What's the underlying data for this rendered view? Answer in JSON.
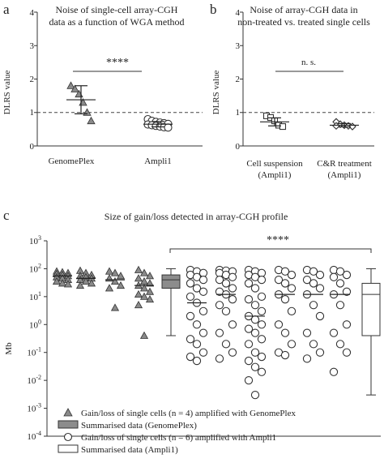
{
  "panels": {
    "a": {
      "label": "a",
      "title_lines": [
        "Noise of single-cell array-CGH",
        "data as a function of WGA method"
      ],
      "ylabel": "DLRS value",
      "yticks": [
        "0",
        "1",
        "2",
        "3",
        "4"
      ],
      "xticks": [
        "GenomePlex",
        "Ampli1"
      ],
      "significance": "****"
    },
    "b": {
      "label": "b",
      "title_lines": [
        "Noise of array-CGH data in",
        "non-treated vs. treated single cells"
      ],
      "ylabel": "DLRS value",
      "yticks": [
        "0",
        "1",
        "2",
        "3",
        "4"
      ],
      "xticks": [
        [
          "Cell suspension",
          "(Ampli1)"
        ],
        [
          "C&R treatment",
          "(Ampli1)"
        ]
      ],
      "significance": "n. s."
    },
    "c": {
      "label": "c",
      "title": "Size of gain/loss detected in array-CGH profile",
      "ylabel": "Mb",
      "ytick_exponents": [
        "3",
        "2",
        "1",
        "0",
        "-1",
        "-2",
        "-3",
        "-4"
      ],
      "significance": "****",
      "legend": [
        {
          "icon": "triangle-icon",
          "text": "Gain/loss of single cells (n = 4) amplified with GenomePlex"
        },
        {
          "icon": "gray-box-icon",
          "text": "Summarised data (GenomePlex)"
        },
        {
          "icon": "circle-icon",
          "text": "Gain/loss of single cells (n = 6) amplified with Ampli1"
        },
        {
          "icon": "white-box-icon",
          "text": "Summarised data (Ampli1)"
        }
      ]
    }
  },
  "chart_data": [
    {
      "type": "scatter",
      "panel": "a",
      "ylim": [
        0,
        4
      ],
      "reference_line": 1,
      "categories": [
        "GenomePlex",
        "Ampli1"
      ],
      "series": [
        {
          "category": "GenomePlex",
          "marker": "triangle",
          "values": [
            1.8,
            1.7,
            1.55,
            1.3,
            1.0,
            0.75
          ],
          "mean": 1.38,
          "sd": 0.42
        },
        {
          "category": "Ampli1",
          "marker": "circle",
          "values": [
            0.8,
            0.75,
            0.72,
            0.7,
            0.68,
            0.66,
            0.64,
            0.62,
            0.6,
            0.58,
            0.56,
            0.55
          ],
          "mean": 0.65,
          "sd": 0.08
        }
      ]
    },
    {
      "type": "scatter",
      "panel": "b",
      "ylim": [
        0,
        4
      ],
      "reference_line": 1,
      "categories": [
        "Cell suspension (Ampli1)",
        "C&R treatment (Ampli1)"
      ],
      "series": [
        {
          "category": "Cell suspension (Ampli1)",
          "marker": "square",
          "values": [
            0.9,
            0.85,
            0.75,
            0.62,
            0.58
          ],
          "mean": 0.72,
          "sd": 0.12
        },
        {
          "category": "C&R treatment (Ampli1)",
          "marker": "diamond",
          "values": [
            0.72,
            0.65,
            0.62,
            0.6,
            0.58,
            0.6
          ],
          "mean": 0.62,
          "sd": 0.05
        }
      ]
    },
    {
      "type": "scatter",
      "panel": "c",
      "yscale": "log10",
      "ylim": [
        0.0001,
        1000
      ],
      "groups": [
        {
          "name": "GenomePlex cell 1",
          "kind": "triangle",
          "median": 55,
          "values": [
            80,
            75,
            70,
            65,
            60,
            55,
            50,
            45,
            40,
            35,
            30,
            28
          ]
        },
        {
          "name": "GenomePlex cell 2",
          "kind": "triangle",
          "median": 45,
          "values": [
            85,
            70,
            60,
            55,
            50,
            45,
            40,
            35,
            30,
            25
          ]
        },
        {
          "name": "GenomePlex cell 3",
          "kind": "triangle",
          "median": 40,
          "values": [
            80,
            70,
            55,
            45,
            35,
            25,
            20,
            4
          ]
        },
        {
          "name": "GenomePlex cell 4",
          "kind": "triangle",
          "median": 25,
          "values": [
            90,
            70,
            55,
            45,
            35,
            30,
            25,
            20,
            15,
            12,
            10,
            8,
            5,
            0.4
          ]
        },
        {
          "name": "GenomePlex summary",
          "kind": "box",
          "whisker_low": 0.4,
          "q1": 20,
          "median": 40,
          "q3": 60,
          "whisker_high": 100
        },
        {
          "name": "Ampli1 cell 1",
          "kind": "circle",
          "median": 6,
          "values": [
            90,
            80,
            70,
            60,
            50,
            40,
            30,
            20,
            15,
            10,
            6,
            3,
            2,
            1,
            0.5,
            0.3,
            0.2,
            0.1,
            0.07,
            0.05
          ]
        },
        {
          "name": "Ampli1 cell 2",
          "kind": "circle",
          "median": 12,
          "values": [
            90,
            85,
            80,
            70,
            60,
            50,
            40,
            30,
            20,
            15,
            12,
            8,
            5,
            3,
            1,
            0.5,
            0.2,
            0.1,
            0.06
          ]
        },
        {
          "name": "Ampli1 cell 3",
          "kind": "circle",
          "median": 2,
          "values": [
            90,
            80,
            70,
            60,
            50,
            40,
            30,
            20,
            10,
            8,
            5,
            3,
            2,
            1.5,
            1,
            0.7,
            0.5,
            0.3,
            0.2,
            0.1,
            0.07,
            0.05,
            0.03,
            0.02,
            0.01,
            0.003
          ]
        },
        {
          "name": "Ampli1 cell 4",
          "kind": "circle",
          "median": 12,
          "values": [
            90,
            80,
            60,
            40,
            30,
            20,
            12,
            8,
            3,
            1,
            0.5,
            0.2,
            0.1,
            0.08
          ]
        },
        {
          "name": "Ampli1 cell 5",
          "kind": "circle",
          "median": 12,
          "values": [
            90,
            80,
            60,
            40,
            30,
            20,
            12,
            5,
            2,
            0.5,
            0.2,
            0.1,
            0.06
          ]
        },
        {
          "name": "Ampli1 cell 6",
          "kind": "circle",
          "median": 12,
          "values": [
            90,
            80,
            60,
            50,
            30,
            15,
            12,
            5,
            1,
            0.5,
            0.2,
            0.1,
            0.02
          ]
        },
        {
          "name": "Ampli1 summary",
          "kind": "box",
          "whisker_low": 0.003,
          "q1": 0.4,
          "median": 12,
          "q3": 30,
          "whisker_high": 100
        }
      ]
    }
  ]
}
